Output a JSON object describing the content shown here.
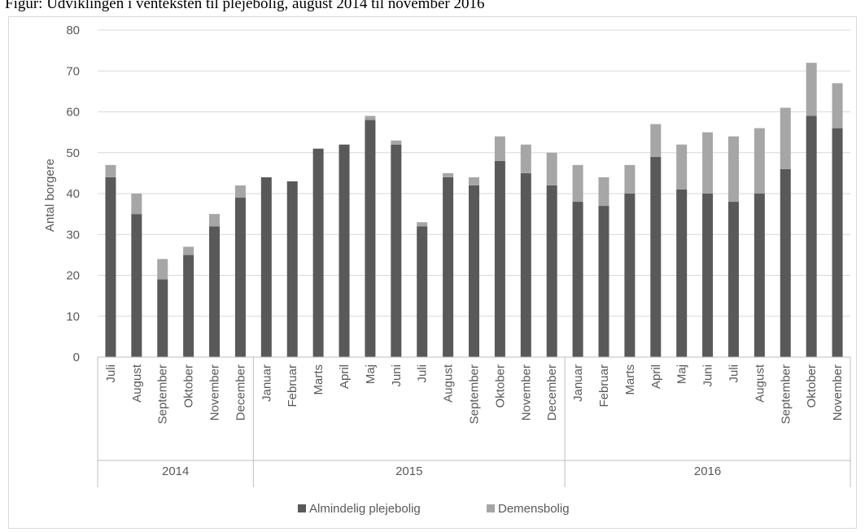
{
  "caption": "Figur: Udviklingen i venteksten til plejebolig, august 2014 til november 2016",
  "chart_data": {
    "type": "bar",
    "stacked": true,
    "ylabel": "Antal borgere",
    "ylim": [
      0,
      80
    ],
    "yticks": [
      0,
      10,
      20,
      30,
      40,
      50,
      60,
      70,
      80
    ],
    "grid": true,
    "legend_position": "bottom",
    "groups": [
      {
        "label": "2014",
        "count": 6
      },
      {
        "label": "2015",
        "count": 12
      },
      {
        "label": "2016",
        "count": 11
      }
    ],
    "categories": [
      "Juli",
      "August",
      "September",
      "Oktober",
      "November",
      "December",
      "Januar",
      "Februar",
      "Marts",
      "April",
      "Maj",
      "Juni",
      "Juli",
      "August",
      "September",
      "Oktober",
      "November",
      "December",
      "Januar",
      "Februar",
      "Marts",
      "April",
      "Maj",
      "Juni",
      "Juli",
      "August",
      "September",
      "Oktober",
      "November"
    ],
    "series": [
      {
        "name": "Almindelig plejebolig",
        "color": "#595959",
        "values": [
          44,
          35,
          19,
          25,
          32,
          39,
          44,
          43,
          51,
          52,
          58,
          52,
          32,
          44,
          42,
          48,
          45,
          42,
          38,
          37,
          40,
          49,
          41,
          40,
          38,
          40,
          46,
          59,
          56
        ]
      },
      {
        "name": "Demensbolig",
        "color": "#a6a6a6",
        "values": [
          3,
          5,
          5,
          2,
          3,
          3,
          0,
          0,
          0,
          0,
          1,
          1,
          1,
          1,
          2,
          6,
          7,
          8,
          9,
          7,
          7,
          8,
          11,
          15,
          16,
          16,
          15,
          13,
          11
        ]
      }
    ]
  }
}
